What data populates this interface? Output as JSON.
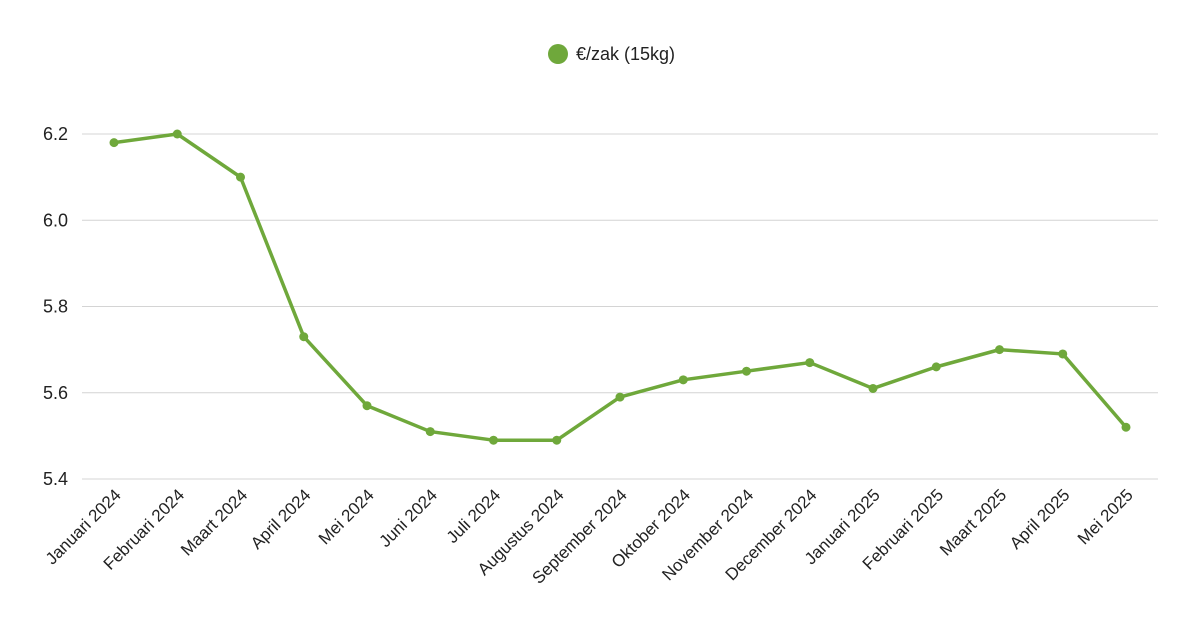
{
  "chart_data": {
    "type": "line",
    "categories": [
      "Januari 2024",
      "Februari 2024",
      "Maart 2024",
      "April 2024",
      "Mei 2024",
      "Juni 2024",
      "Juli 2024",
      "Augustus 2024",
      "September 2024",
      "Oktober 2024",
      "November 2024",
      "December 2024",
      "Januari 2025",
      "Februari 2025",
      "Maart 2025",
      "April 2025",
      "Mei 2025"
    ],
    "series": [
      {
        "name": "€/zak (15kg)",
        "values": [
          6.18,
          6.2,
          6.1,
          5.73,
          5.57,
          5.51,
          5.49,
          5.49,
          5.59,
          5.63,
          5.65,
          5.67,
          5.61,
          5.66,
          5.7,
          5.69,
          5.52
        ],
        "color": "#6fa83b"
      }
    ],
    "title": "",
    "xlabel": "",
    "ylabel": "",
    "ylim": [
      5.4,
      6.2
    ],
    "yticks": [
      "5.4",
      "5.6",
      "5.8",
      "6.0",
      "6.2"
    ],
    "grid": true,
    "legend_position": "top-center"
  }
}
